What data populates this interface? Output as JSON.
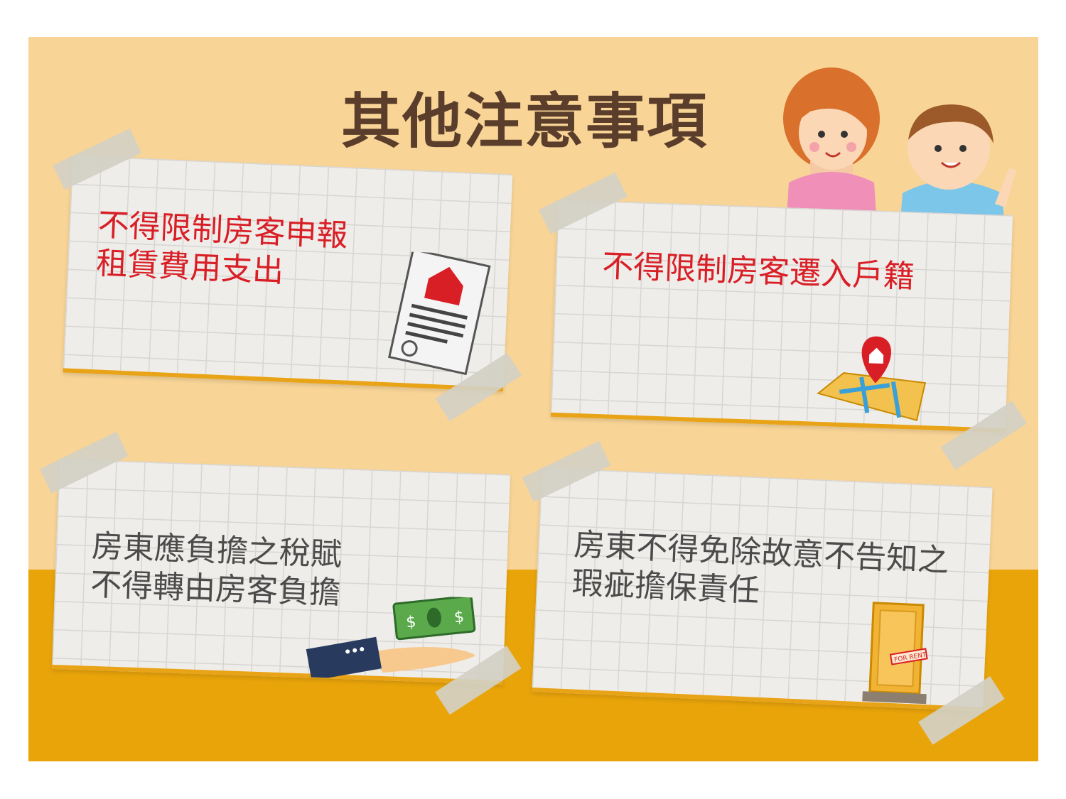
{
  "title": "其他注意事項",
  "notes": [
    {
      "lines": [
        "不得限制房客申報",
        "租賃費用支出"
      ],
      "icon": "document-house-icon"
    },
    {
      "lines": [
        "不得限制房客遷入戶籍"
      ],
      "icon": "map-pin-house-icon"
    },
    {
      "lines": [
        "房東應負擔之稅賦",
        "不得轉由房客負擔"
      ],
      "icon": "money-hand-icon"
    },
    {
      "lines": [
        "房東不得免除故意不告知之",
        "瑕疵擔保責任"
      ],
      "icon": "door-for-rent-icon"
    }
  ],
  "door_sign": "FOR RENT",
  "colors": {
    "background": "#f8d496",
    "floor": "#e9a40a",
    "red_text": "#d91f26",
    "gray_text": "#4b4b4b",
    "title": "#5a3e2b"
  }
}
